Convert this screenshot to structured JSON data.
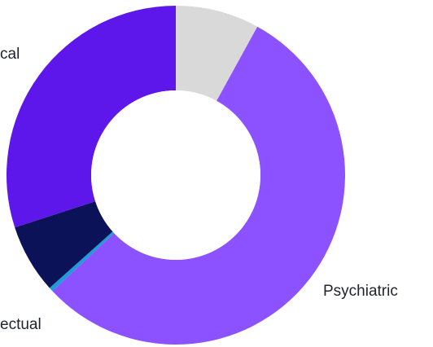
{
  "chart_data": {
    "type": "pie",
    "donut": true,
    "title": "",
    "slices": [
      {
        "label": "",
        "value": 8.0,
        "color": "#d9d9d9"
      },
      {
        "label": "Psychiatric",
        "value": 55.0,
        "color": "#8c52ff"
      },
      {
        "label": "",
        "value": 0.4,
        "color": "#1f9bd7"
      },
      {
        "label": "ectual",
        "value": 6.6,
        "color": "#0b1257"
      },
      {
        "label": "cal",
        "value": 30.0,
        "color": "#5e17eb"
      }
    ]
  }
}
